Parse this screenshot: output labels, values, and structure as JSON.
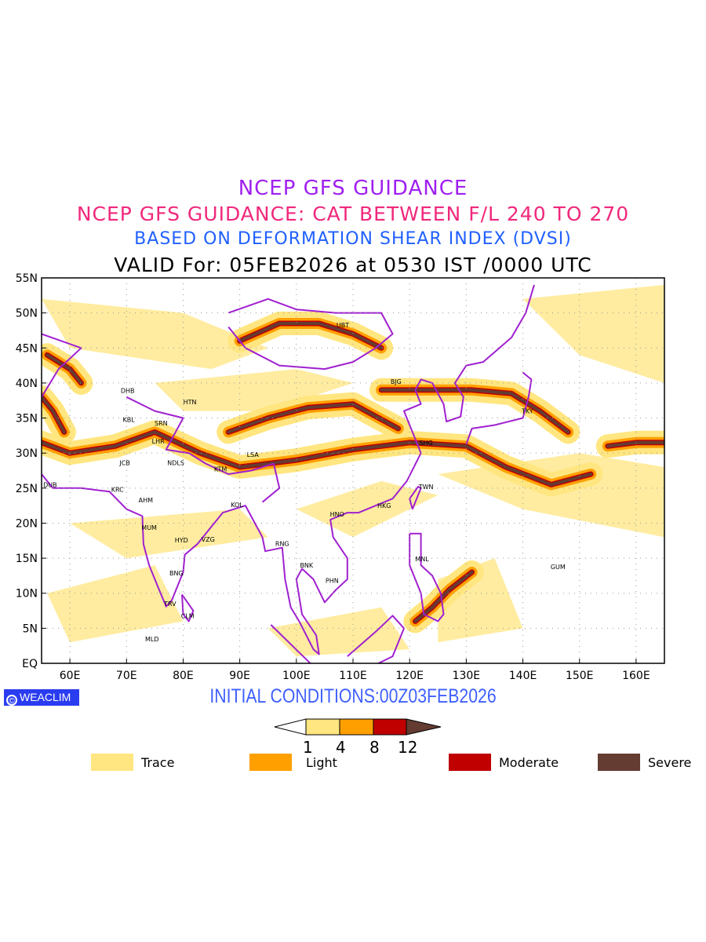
{
  "titles": {
    "line1": "NCEP GFS GUIDANCE",
    "line2": "NCEP GFS GUIDANCE: CAT BETWEEN F/L 240 TO 270",
    "line3": "BASED ON DEFORMATION SHEAR INDEX (DVSI)",
    "line4": "VALID For: 05FEB2026 at 0530 IST /0000 UTC"
  },
  "map": {
    "lon_range": [
      55,
      165
    ],
    "lat_range": [
      0,
      55
    ],
    "lon_ticks": [
      {
        "v": 60,
        "label": "60E"
      },
      {
        "v": 70,
        "label": "70E"
      },
      {
        "v": 80,
        "label": "80E"
      },
      {
        "v": 90,
        "label": "90E"
      },
      {
        "v": 100,
        "label": "100E"
      },
      {
        "v": 110,
        "label": "110E"
      },
      {
        "v": 120,
        "label": "120E"
      },
      {
        "v": 130,
        "label": "130E"
      },
      {
        "v": 140,
        "label": "140E"
      },
      {
        "v": 150,
        "label": "150E"
      },
      {
        "v": 160,
        "label": "160E"
      }
    ],
    "lat_ticks": [
      {
        "v": 0,
        "label": "EQ"
      },
      {
        "v": 5,
        "label": "5N"
      },
      {
        "v": 10,
        "label": "10N"
      },
      {
        "v": 15,
        "label": "15N"
      },
      {
        "v": 20,
        "label": "20N"
      },
      {
        "v": 25,
        "label": "25N"
      },
      {
        "v": 30,
        "label": "30N"
      },
      {
        "v": 35,
        "label": "35N"
      },
      {
        "v": 40,
        "label": "40N"
      },
      {
        "v": 45,
        "label": "45N"
      },
      {
        "v": 50,
        "label": "50N"
      },
      {
        "v": 55,
        "label": "55N"
      }
    ],
    "cities": [
      {
        "code": "UBT",
        "lon": 108.2,
        "lat": 48.3
      },
      {
        "code": "BJG",
        "lon": 117.6,
        "lat": 40.2
      },
      {
        "code": "TKY",
        "lon": 140.8,
        "lat": 36.0
      },
      {
        "code": "SHG",
        "lon": 122.9,
        "lat": 31.5
      },
      {
        "code": "TWN",
        "lon": 122.9,
        "lat": 25.2
      },
      {
        "code": "HKG",
        "lon": 115.5,
        "lat": 22.5
      },
      {
        "code": "HNO",
        "lon": 107.2,
        "lat": 21.3
      },
      {
        "code": "RNG",
        "lon": 97.5,
        "lat": 17.1
      },
      {
        "code": "BNK",
        "lon": 101.8,
        "lat": 14.0
      },
      {
        "code": "PHN",
        "lon": 106.3,
        "lat": 11.8
      },
      {
        "code": "MNL",
        "lon": 122.2,
        "lat": 14.9
      },
      {
        "code": "GUM",
        "lon": 146.2,
        "lat": 13.8
      },
      {
        "code": "DHB",
        "lon": 70.2,
        "lat": 38.9
      },
      {
        "code": "HTN",
        "lon": 81.2,
        "lat": 37.3
      },
      {
        "code": "KBL",
        "lon": 70.4,
        "lat": 34.8
      },
      {
        "code": "SRN",
        "lon": 76.1,
        "lat": 34.3
      },
      {
        "code": "LHR",
        "lon": 75.6,
        "lat": 31.7
      },
      {
        "code": "JCB",
        "lon": 69.7,
        "lat": 28.6
      },
      {
        "code": "NDLS",
        "lon": 78.7,
        "lat": 28.6
      },
      {
        "code": "KTM",
        "lon": 86.6,
        "lat": 27.7
      },
      {
        "code": "LSA",
        "lon": 92.3,
        "lat": 29.8
      },
      {
        "code": "DUB",
        "lon": 56.5,
        "lat": 25.5
      },
      {
        "code": "KRC",
        "lon": 68.4,
        "lat": 24.8
      },
      {
        "code": "AHM",
        "lon": 73.4,
        "lat": 23.3
      },
      {
        "code": "KOL",
        "lon": 89.5,
        "lat": 22.6
      },
      {
        "code": "MUM",
        "lon": 74.0,
        "lat": 19.4
      },
      {
        "code": "HYD",
        "lon": 79.7,
        "lat": 17.6
      },
      {
        "code": "VZG",
        "lon": 84.4,
        "lat": 17.7
      },
      {
        "code": "BNG",
        "lon": 78.8,
        "lat": 12.9
      },
      {
        "code": "TRV",
        "lon": 77.7,
        "lat": 8.5
      },
      {
        "code": "CLM",
        "lon": 80.8,
        "lat": 6.8
      },
      {
        "code": "MLD",
        "lon": 74.5,
        "lat": 3.5
      }
    ]
  },
  "logo": {
    "symbol": "©",
    "text": "WEACLIM"
  },
  "initial": "INITIAL CONDITIONS:00Z03FEB2026",
  "colorbar": {
    "ticks": [
      "1",
      "4",
      "8",
      "12"
    ]
  },
  "legend": [
    {
      "label": "Trace",
      "color": "#ffe680"
    },
    {
      "label": "Light",
      "color": "#ffa000"
    },
    {
      "label": "Moderate",
      "color": "#c00000"
    },
    {
      "label": "Severe",
      "color": "#643c32"
    }
  ],
  "colors": {
    "boundary": "#a020d0",
    "trace": "#ffe680",
    "light": "#ffa000",
    "moderate": "#c00000",
    "severe": "#643c32"
  }
}
